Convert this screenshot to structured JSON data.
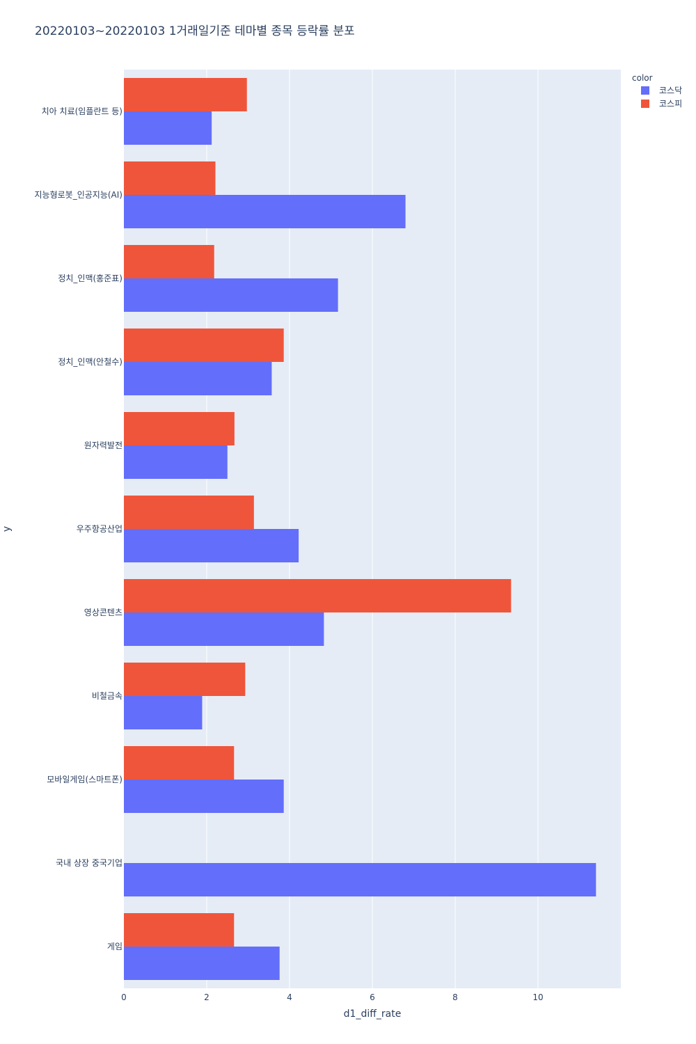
{
  "chart_data": {
    "type": "bar",
    "orientation": "horizontal",
    "barmode": "group",
    "title": "20220103~20220103 1거래일기준 테마별 종목 등락률 분포",
    "xlabel": "d1_diff_rate",
    "ylabel": "y",
    "xlim": [
      0,
      12
    ],
    "xticks": [
      0,
      2,
      4,
      6,
      8,
      10
    ],
    "grid": true,
    "legend_title": "color",
    "legend_position": "top-right",
    "categories": [
      "치아 치료(임플란트 등)",
      "지능형로봇_인공지능(AI)",
      "정치_인맥(홍준표)",
      "정치_인맥(안철수)",
      "원자력발전",
      "우주항공산업",
      "영상콘텐츠",
      "비철금속",
      "모바일게임(스마트폰)",
      "국내 상장 중국기업",
      "게임"
    ],
    "series": [
      {
        "name": "코스닥",
        "color": "#636efa",
        "values": [
          2.12,
          6.8,
          5.17,
          3.57,
          2.5,
          4.22,
          4.83,
          1.89,
          3.86,
          11.4,
          3.76
        ]
      },
      {
        "name": "코스피",
        "color": "#ef553b",
        "values": [
          2.97,
          2.21,
          2.18,
          3.86,
          2.67,
          3.14,
          9.35,
          2.93,
          2.66,
          null,
          2.66
        ]
      }
    ]
  },
  "colors": {
    "plot_bg": "#e5ecf6",
    "paper_bg": "#ffffff",
    "text": "#2a3f5f",
    "grid": "#ffffff"
  }
}
